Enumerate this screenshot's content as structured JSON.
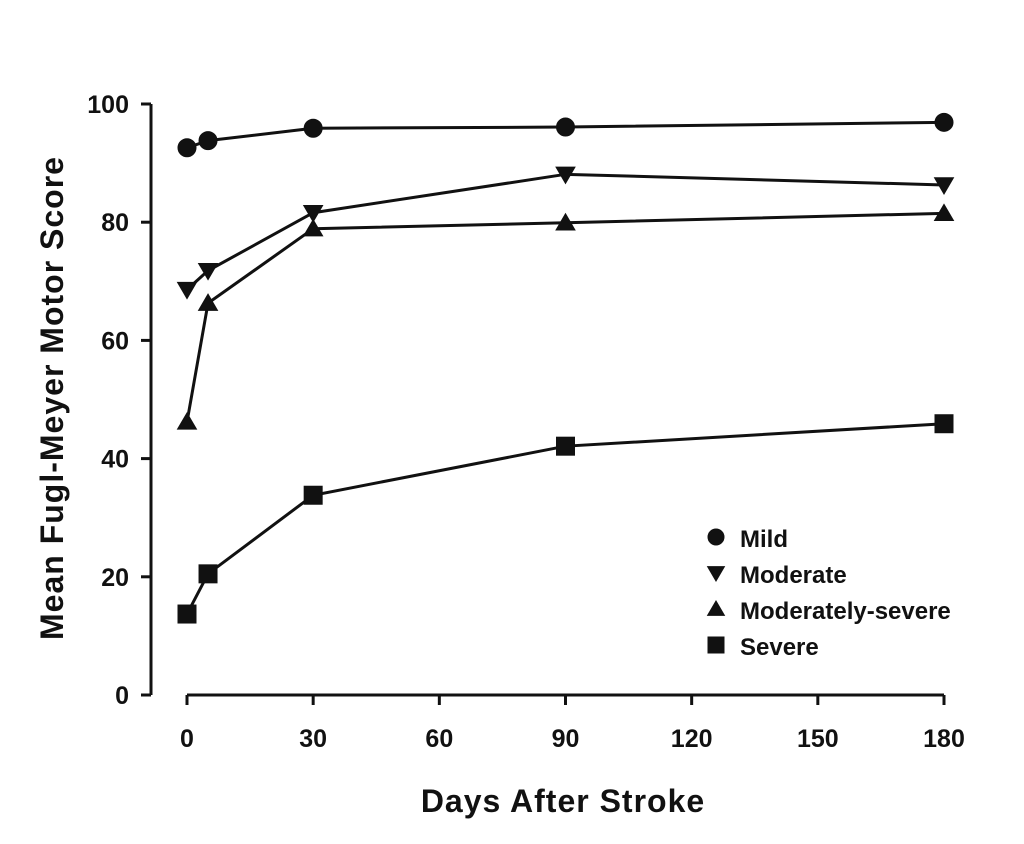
{
  "chart_data": {
    "type": "line",
    "xlabel": "Days After Stroke",
    "ylabel": "Mean Fugl-Meyer Motor Score",
    "xlim": [
      0,
      180
    ],
    "ylim": [
      0,
      100
    ],
    "xticks": [
      0,
      30,
      60,
      90,
      120,
      150,
      180
    ],
    "yticks": [
      0,
      20,
      40,
      60,
      80,
      100
    ],
    "grid": false,
    "legend_position": "bottom-right",
    "series": [
      {
        "name": "Mild",
        "marker": "circle",
        "x": [
          0,
          5,
          30,
          90,
          180
        ],
        "y": [
          92.6,
          93.8,
          95.9,
          96.1,
          96.9
        ]
      },
      {
        "name": "Moderate",
        "marker": "triangle-down",
        "x": [
          0,
          5,
          30,
          90,
          180
        ],
        "y": [
          68.6,
          71.8,
          81.6,
          88.1,
          86.3
        ]
      },
      {
        "name": "Moderately-severe",
        "marker": "triangle-up",
        "x": [
          0,
          5,
          30,
          90,
          180
        ],
        "y": [
          46.2,
          66.3,
          78.9,
          79.9,
          81.5
        ]
      },
      {
        "name": "Severe",
        "marker": "square",
        "x": [
          0,
          5,
          30,
          90,
          180
        ],
        "y": [
          13.7,
          20.5,
          33.8,
          42.1,
          45.9
        ]
      }
    ]
  }
}
